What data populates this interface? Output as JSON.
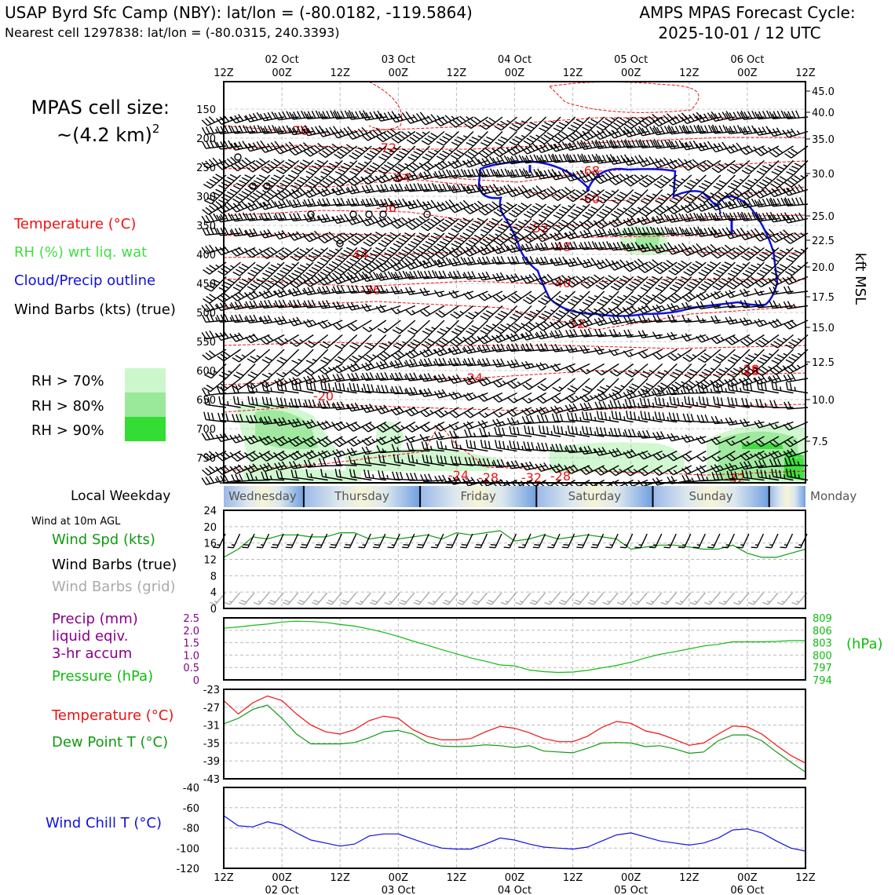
{
  "header": {
    "station": "USAP Byrd Sfc Camp (NBY): lat/lon = (-80.0182, -119.5864)",
    "cell": "Nearest cell 1297838: lat/lon = (-80.0315, 240.3393)",
    "forecast_title": "AMPS MPAS Forecast Cycle:",
    "forecast_cycle": "2025-10-01 / 12 UTC"
  },
  "legend": {
    "cell_size_label": "MPAS cell size:",
    "cell_size_value": "~(4.2 km)",
    "cell_size_exp": "2",
    "temperature": "Temperature (°C)",
    "rh": "RH (%) wrt liq. wat",
    "cloud": "Cloud/Precip outline",
    "barbs": "Wind Barbs (kts) (true)",
    "rh70": "RH > 70%",
    "rh80": "RH > 80%",
    "rh90": "RH > 90%",
    "local_weekday": "Local Weekday",
    "wind10m": "Wind at 10m AGL",
    "wind_spd": "Wind Spd (kts)",
    "wind_barbs_true": "Wind Barbs (true)",
    "wind_barbs_grid": "Wind Barbs (grid)",
    "precip_1": "Precip (mm)",
    "precip_2": "liquid eqiv.",
    "precip_3": "3-hr accum",
    "pressure": "Pressure (hPa)",
    "pressure_unit": "(hPa)",
    "temp": "Temperature (°C)",
    "dewpoint": "Dew Point T (°C)",
    "windchill": "Wind Chill T (°C)",
    "kft": "kft MSL"
  },
  "colors": {
    "temp": "#ee1111",
    "green": "#119911",
    "blue": "#1111dd",
    "purple": "#880088",
    "press": "#11bb11",
    "gray": "#aaaaaa",
    "rh70": "#ccf7cc",
    "rh80": "#9ae89a",
    "rh90": "#33dd33"
  },
  "time_axis": {
    "top_hours": [
      "12Z",
      "00Z",
      "12Z",
      "00Z",
      "12Z",
      "00Z",
      "12Z",
      "00Z",
      "12Z",
      "00Z",
      "12Z"
    ],
    "dates": [
      "02 Oct",
      "03 Oct",
      "04 Oct",
      "05 Oct",
      "06 Oct"
    ],
    "bottom_hours": [
      "12Z",
      "00Z",
      "12Z",
      "00Z",
      "12Z",
      "00Z",
      "12Z",
      "00Z",
      "12Z",
      "00Z",
      "12Z"
    ]
  },
  "weekdays": [
    "Wednesday",
    "Thursday",
    "Friday",
    "Saturday",
    "Sunday",
    "Monday"
  ],
  "chart_data": [
    {
      "type": "contour",
      "name": "cross-section",
      "x_hours": [
        0,
        120
      ],
      "y_pressure_levels": [
        150,
        200,
        250,
        300,
        350,
        400,
        450,
        500,
        550,
        600,
        650,
        700,
        750
      ],
      "right_axis_kft": [
        "45.0",
        "40.0",
        "35.0",
        "30.0",
        "25.0",
        "22.5",
        "20.0",
        "17.5",
        "15.0",
        "12.5",
        "10.0",
        "7.5"
      ],
      "temperature_contour_labels": [
        "-76",
        "-72",
        "-64",
        "-56",
        "-44",
        "-36",
        "-20",
        "-24",
        "-24",
        "-28",
        "-32",
        "-28",
        "-32",
        "-52",
        "-48",
        "-40",
        "-32",
        "-68",
        "-60",
        "-28",
        "-28"
      ]
    },
    {
      "type": "line",
      "name": "wind-speed",
      "ylabel": "Wind Spd (kts)",
      "ylim": [
        0,
        24
      ],
      "yticks": [
        "0",
        "4",
        "8",
        "12",
        "16",
        "20",
        "24"
      ],
      "x_hours": [
        0,
        3,
        6,
        9,
        12,
        15,
        18,
        21,
        24,
        27,
        30,
        33,
        36,
        39,
        42,
        45,
        48,
        51,
        54,
        57,
        60,
        63,
        66,
        69,
        72,
        75,
        78,
        81,
        84,
        87,
        90,
        93,
        96,
        99,
        102,
        105,
        108,
        111,
        114,
        117,
        120
      ],
      "values": [
        12.5,
        14.5,
        17.5,
        17,
        18,
        18,
        17.5,
        17.5,
        18.5,
        18.5,
        17,
        17.5,
        17,
        17.5,
        18,
        17,
        18.5,
        18,
        18.5,
        19,
        16.5,
        17,
        18,
        17,
        17.5,
        18,
        17.5,
        17,
        14.5,
        15,
        15.5,
        15.5,
        15,
        14.5,
        14.5,
        15.5,
        13.5,
        12.5,
        12.5,
        13.5,
        14.5
      ]
    },
    {
      "type": "line",
      "name": "pressure",
      "ylabel": "Pressure (hPa)",
      "left_axis": {
        "label": "Precip (mm)",
        "ylim": [
          0,
          2.5
        ],
        "yticks": [
          "0",
          "0.5",
          "1.0",
          "1.5",
          "2.0",
          "2.5"
        ]
      },
      "right_axis": {
        "ylim": [
          794,
          809
        ],
        "yticks": [
          "794",
          "797",
          "800",
          "803",
          "806",
          "809"
        ]
      },
      "x_hours": [
        0,
        3,
        6,
        9,
        12,
        15,
        18,
        21,
        24,
        27,
        30,
        33,
        36,
        39,
        42,
        45,
        48,
        51,
        54,
        57,
        60,
        63,
        66,
        69,
        72,
        75,
        78,
        81,
        84,
        87,
        90,
        93,
        96,
        99,
        102,
        105,
        108,
        111,
        114,
        117,
        120
      ],
      "values": [
        806.5,
        806.8,
        807.2,
        807.5,
        808,
        808.2,
        808.1,
        807.9,
        807.4,
        807,
        806.3,
        805.5,
        804.5,
        803.4,
        802.4,
        801.3,
        800.3,
        799.3,
        798.5,
        797.6,
        797.4,
        796.4,
        796,
        795.8,
        795.9,
        796.3,
        796.9,
        797.5,
        798.3,
        799.3,
        800.2,
        800.8,
        801.5,
        802.2,
        802.6,
        803.2,
        803.2,
        803.2,
        803.3,
        803.5,
        803.5
      ],
      "precip": [
        0,
        0,
        0,
        0,
        0,
        0,
        0,
        0,
        0,
        0,
        0,
        0,
        0,
        0,
        0,
        0,
        0,
        0,
        0,
        0,
        0,
        0,
        0,
        0,
        0,
        0,
        0,
        0,
        0,
        0,
        0,
        0,
        0,
        0,
        0,
        0,
        0,
        0,
        0,
        0,
        0
      ]
    },
    {
      "type": "line",
      "name": "temperature-dewpoint",
      "ylim": [
        -43,
        -23
      ],
      "yticks": [
        "-43",
        "-39",
        "-35",
        "-31",
        "-27",
        "-23"
      ],
      "x_hours": [
        0,
        3,
        6,
        9,
        12,
        15,
        18,
        21,
        24,
        27,
        30,
        33,
        36,
        39,
        42,
        45,
        48,
        51,
        54,
        57,
        60,
        63,
        66,
        69,
        72,
        75,
        78,
        81,
        84,
        87,
        90,
        93,
        96,
        99,
        102,
        105,
        108,
        111,
        114,
        117,
        120
      ],
      "series": [
        {
          "name": "Temperature (°C)",
          "values": [
            -25.5,
            -28.5,
            -26,
            -24.5,
            -25.5,
            -28.5,
            -31,
            -32.5,
            -33,
            -32,
            -30,
            -29,
            -29.5,
            -32,
            -33.5,
            -34.3,
            -34.3,
            -34,
            -32.5,
            -31.3,
            -31.7,
            -32.7,
            -34,
            -34.7,
            -34.7,
            -33.5,
            -31.5,
            -30.2,
            -30.6,
            -32.3,
            -33,
            -34.2,
            -35.5,
            -35,
            -33,
            -31.2,
            -31.4,
            -33,
            -35.5,
            -37.8,
            -39.5
          ]
        },
        {
          "name": "Dew Point T (°C)",
          "values": [
            -30.7,
            -29.5,
            -27.5,
            -26.5,
            -29.5,
            -33,
            -35.2,
            -35.2,
            -35.2,
            -34.9,
            -33.8,
            -32.5,
            -32.2,
            -33,
            -34.9,
            -35.7,
            -35.8,
            -35.7,
            -35.4,
            -35.6,
            -36,
            -35.6,
            -36.8,
            -37,
            -37.2,
            -36.2,
            -35,
            -34.9,
            -35,
            -35.8,
            -35.6,
            -36.3,
            -37.3,
            -37,
            -34.5,
            -33.2,
            -33.2,
            -34.5,
            -37,
            -39.3,
            -41.5
          ]
        }
      ]
    },
    {
      "type": "line",
      "name": "wind-chill",
      "ylabel": "Wind Chill T (°C)",
      "ylim": [
        -120,
        -40
      ],
      "yticks": [
        "-120",
        "-100",
        "-80",
        "-60",
        "-40"
      ],
      "x_hours": [
        0,
        3,
        6,
        9,
        12,
        15,
        18,
        21,
        24,
        27,
        30,
        33,
        36,
        39,
        42,
        45,
        48,
        51,
        54,
        57,
        60,
        63,
        66,
        69,
        72,
        75,
        78,
        81,
        84,
        87,
        90,
        93,
        96,
        99,
        102,
        105,
        108,
        111,
        114,
        117,
        120
      ],
      "values": [
        -68,
        -78,
        -79,
        -74,
        -77,
        -85,
        -92,
        -95,
        -98,
        -96,
        -88,
        -86,
        -86,
        -91,
        -96,
        -100,
        -101,
        -101,
        -96,
        -90,
        -92,
        -96,
        -99,
        -100,
        -101,
        -99,
        -93,
        -87,
        -85,
        -89,
        -93,
        -95,
        -97,
        -95,
        -90,
        -82,
        -81,
        -85,
        -93,
        -100,
        -103
      ]
    }
  ]
}
